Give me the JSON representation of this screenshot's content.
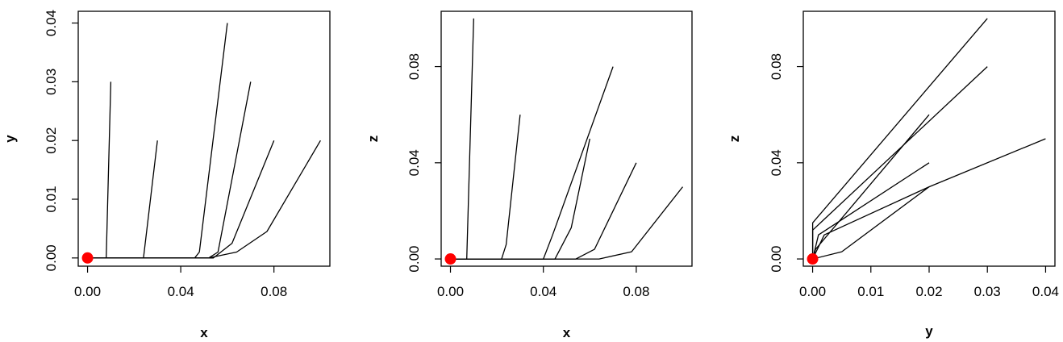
{
  "chart_data": [
    {
      "type": "line",
      "xlabel": "x",
      "ylabel": "y",
      "xlim": [
        -0.004,
        0.104
      ],
      "ylim": [
        -0.0014,
        0.042
      ],
      "xticks": [
        0.0,
        0.04,
        0.08
      ],
      "xtick_labels": [
        "0.00",
        "0.04",
        "0.08"
      ],
      "yticks": [
        0.0,
        0.01,
        0.02,
        0.03,
        0.04
      ],
      "ytick_labels": [
        "0.00",
        "0.01",
        "0.02",
        "0.03",
        "0.04"
      ],
      "grid": false,
      "series": [
        {
          "x": [
            0.0,
            0.008,
            0.01
          ],
          "y": [
            0.0,
            0.0,
            0.03
          ]
        },
        {
          "x": [
            0.0,
            0.024,
            0.03
          ],
          "y": [
            0.0,
            0.0,
            0.02
          ]
        },
        {
          "x": [
            0.0,
            0.046,
            0.048,
            0.06
          ],
          "y": [
            0.0,
            0.0,
            0.001,
            0.04
          ]
        },
        {
          "x": [
            0.0,
            0.052,
            0.056,
            0.07
          ],
          "y": [
            0.0,
            0.0,
            0.001,
            0.03
          ]
        },
        {
          "x": [
            0.0,
            0.054,
            0.062,
            0.08
          ],
          "y": [
            0.0,
            0.0,
            0.0025,
            0.02
          ]
        },
        {
          "x": [
            0.0,
            0.052,
            0.064,
            0.077,
            0.1
          ],
          "y": [
            0.0,
            0.0,
            0.001,
            0.0045,
            0.02
          ]
        }
      ],
      "origin_point": {
        "x": 0.0,
        "y": 0.0,
        "color": "#ff0000"
      }
    },
    {
      "type": "line",
      "xlabel": "x",
      "ylabel": "z",
      "xlim": [
        -0.004,
        0.104
      ],
      "ylim": [
        -0.003,
        0.103
      ],
      "xticks": [
        0.0,
        0.04,
        0.08
      ],
      "xtick_labels": [
        "0.00",
        "0.04",
        "0.08"
      ],
      "yticks": [
        0.0,
        0.04,
        0.08
      ],
      "ytick_labels": [
        "0.00",
        "0.04",
        "0.08"
      ],
      "grid": false,
      "series": [
        {
          "x": [
            0.0,
            0.007,
            0.01
          ],
          "y": [
            0.0,
            0.0,
            0.1
          ]
        },
        {
          "x": [
            0.0,
            0.022,
            0.024,
            0.03
          ],
          "y": [
            0.0,
            0.0,
            0.006,
            0.06
          ]
        },
        {
          "x": [
            0.0,
            0.04,
            0.044,
            0.07
          ],
          "y": [
            0.0,
            0.0,
            0.01,
            0.08
          ]
        },
        {
          "x": [
            0.0,
            0.045,
            0.052,
            0.06
          ],
          "y": [
            0.0,
            0.0,
            0.013,
            0.05
          ]
        },
        {
          "x": [
            0.0,
            0.054,
            0.062,
            0.08
          ],
          "y": [
            0.0,
            0.0,
            0.004,
            0.04
          ]
        },
        {
          "x": [
            0.0,
            0.064,
            0.078,
            0.1
          ],
          "y": [
            0.0,
            0.0,
            0.003,
            0.03
          ]
        }
      ],
      "origin_point": {
        "x": 0.0,
        "y": 0.0,
        "color": "#ff0000"
      }
    },
    {
      "type": "line",
      "xlabel": "y",
      "ylabel": "z",
      "xlim": [
        -0.0016,
        0.0416
      ],
      "ylim": [
        -0.003,
        0.103
      ],
      "xticks": [
        0.0,
        0.01,
        0.02,
        0.03,
        0.04
      ],
      "xtick_labels": [
        "0.00",
        "0.01",
        "0.02",
        "0.03",
        "0.04"
      ],
      "yticks": [
        0.0,
        0.04,
        0.08
      ],
      "ytick_labels": [
        "0.00",
        "0.04",
        "0.08"
      ],
      "grid": false,
      "series": [
        {
          "x": [
            0.0,
            0.0,
            0.03
          ],
          "y": [
            0.0,
            0.015,
            0.1
          ]
        },
        {
          "x": [
            0.0,
            0.0,
            0.03
          ],
          "y": [
            0.0,
            0.012,
            0.08
          ]
        },
        {
          "x": [
            0.0,
            0.0005,
            0.02
          ],
          "y": [
            0.0,
            0.004,
            0.06
          ]
        },
        {
          "x": [
            0.0,
            0.001,
            0.02
          ],
          "y": [
            0.0,
            0.01,
            0.04
          ]
        },
        {
          "x": [
            0.0,
            0.002,
            0.02,
            0.04
          ],
          "y": [
            0.0,
            0.01,
            0.03,
            0.05
          ]
        },
        {
          "x": [
            0.0,
            0.005,
            0.02
          ],
          "y": [
            0.0,
            0.003,
            0.03
          ]
        }
      ],
      "origin_point": {
        "x": 0.0,
        "y": 0.0,
        "color": "#ff0000"
      }
    }
  ]
}
